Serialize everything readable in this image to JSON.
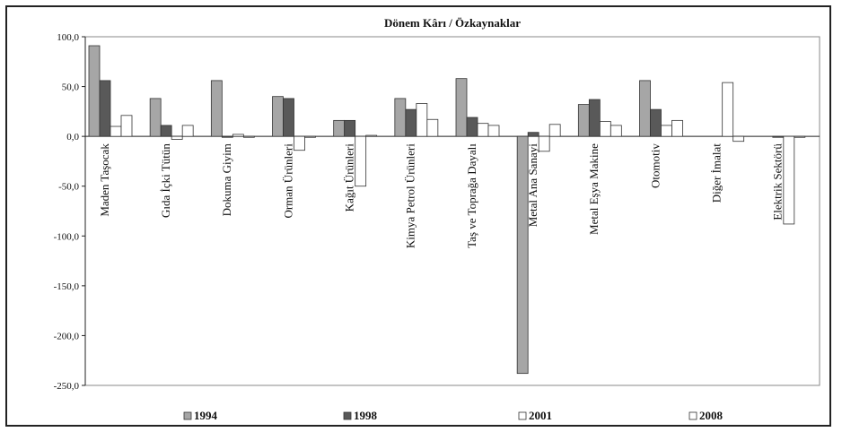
{
  "chart_data": {
    "type": "bar",
    "title": "Dönem Kârı / Özkaynaklar",
    "xlabel": "",
    "ylabel": "",
    "ylim": [
      -250,
      100
    ],
    "yticks": [
      "100,0",
      "50,0",
      "0,0",
      "-50,0",
      "-100,0",
      "-150,0",
      "-200,0",
      "-250,0"
    ],
    "grid": false,
    "legend_position": "bottom",
    "categories": [
      "Maden Taşocak",
      "Gıda İçki Tütün",
      "Dokuma Giyim",
      "Orman Ürünleri",
      "Kağıt Ürünleri",
      "Kimya Petrol Ürünleri",
      "Taş ve Toprağa Dayalı",
      "Metal Ana Sanayi",
      "Metal Eşya Makine",
      "Otomotiv",
      "Diğer İmalat",
      "Elektrik Sektörü"
    ],
    "series": [
      {
        "name": "1994",
        "color": "#a6a6a6",
        "values": [
          91,
          38,
          56,
          40,
          16,
          38,
          58,
          -238,
          32,
          56,
          0,
          0
        ]
      },
      {
        "name": "1998",
        "color": "#595959",
        "values": [
          56,
          11,
          -1,
          38,
          16,
          27,
          19,
          4,
          37,
          27,
          0,
          -1
        ]
      },
      {
        "name": "2001",
        "color": "#ffffff",
        "values": [
          10,
          -3,
          2,
          -14,
          -50,
          33,
          13,
          -15,
          15,
          11,
          54,
          -88
        ]
      },
      {
        "name": "2008",
        "color": "#ffffff",
        "values": [
          21,
          11,
          -1,
          -1,
          1,
          17,
          11,
          12,
          11,
          16,
          -5,
          -1
        ]
      }
    ]
  }
}
